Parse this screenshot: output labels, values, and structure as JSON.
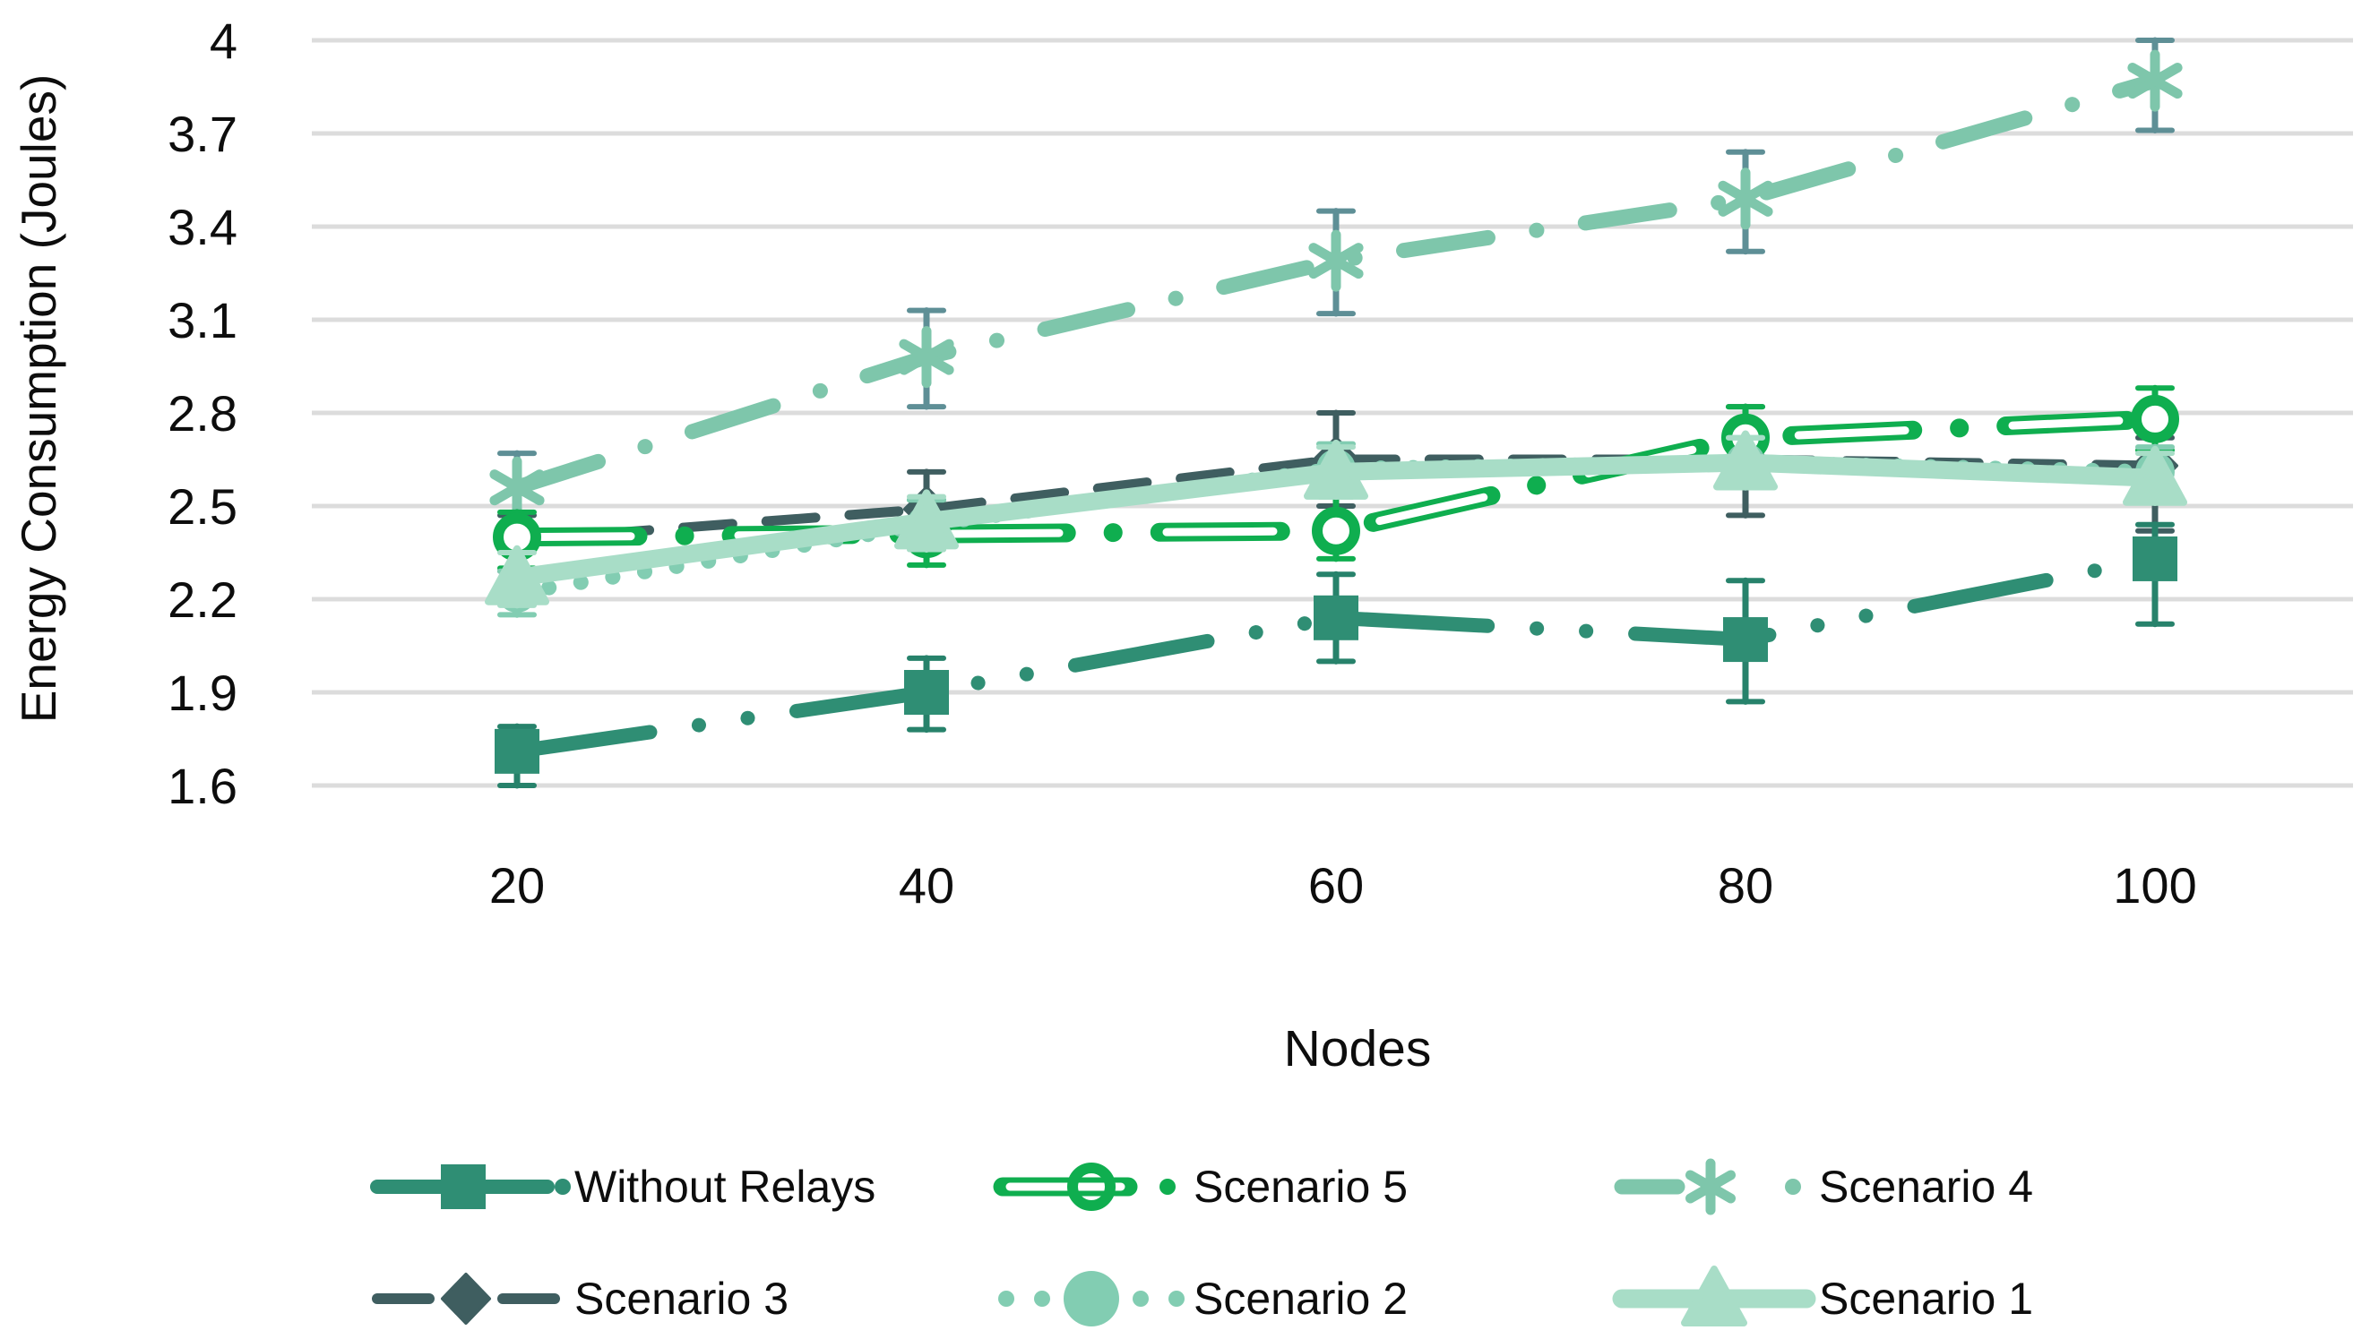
{
  "chart_data": {
    "type": "line",
    "title": "",
    "xlabel": "Nodes",
    "ylabel": "Energy Consumption (Joules)",
    "x_tick_labels": [
      "20",
      "40",
      "60",
      "80",
      "100"
    ],
    "x_values": [
      20,
      40,
      60,
      80,
      100
    ],
    "y_tick_labels": [
      "4",
      "3.7",
      "3.4",
      "3.1",
      "2.8",
      "2.5",
      "2.2",
      "1.9",
      "1.6"
    ],
    "ylim": [
      1.6,
      4.0
    ],
    "y_step": 0.3,
    "grid": "horizontal",
    "gridline_color": "#dcdcdc",
    "legend_position": "bottom",
    "legend_rows": [
      [
        "Without Relays",
        "Scenario 5",
        "Scenario 4"
      ],
      [
        "Scenario 3",
        "Scenario 2",
        "Scenario 1"
      ]
    ],
    "draw_order": [
      "Scenario 4",
      "Scenario 3",
      "Scenario 5",
      "Scenario 2",
      "Without Relays",
      "Scenario 1"
    ],
    "series": [
      {
        "name": "Without Relays",
        "color": "#2F8E74",
        "error_color": "#27826B",
        "line_style": "dash-dot-dot",
        "marker": "square",
        "values": [
          1.71,
          1.9,
          2.14,
          2.07,
          2.33
        ],
        "err_minus": [
          0.11,
          0.12,
          0.14,
          0.2,
          0.21
        ],
        "err_plus": [
          0.08,
          0.11,
          0.14,
          0.19,
          0.11
        ]
      },
      {
        "name": "Scenario 5",
        "color": "#0FAE4F",
        "error_color": "#0FAE4F",
        "line_style": "hollow-dash-dot",
        "marker": "open-circle",
        "values": [
          2.4,
          2.41,
          2.42,
          2.72,
          2.78
        ],
        "err_minus": [
          0.1,
          0.1,
          0.09,
          0.11,
          0.1
        ],
        "err_plus": [
          0.08,
          0.11,
          0.11,
          0.1,
          0.1
        ]
      },
      {
        "name": "Scenario 4",
        "color": "#7EC6AB",
        "error_color": "#5E8F96",
        "line_style": "dash-dot",
        "marker": "asterisk",
        "values": [
          2.56,
          2.98,
          3.29,
          3.49,
          3.87
        ],
        "err_minus": [
          0.13,
          0.16,
          0.17,
          0.17,
          0.16
        ],
        "err_plus": [
          0.11,
          0.15,
          0.16,
          0.15,
          0.13
        ]
      },
      {
        "name": "Scenario 3",
        "color": "#3F5E60",
        "error_color": "#3F5E60",
        "line_style": "dashed",
        "marker": "diamond",
        "values": [
          2.39,
          2.49,
          2.65,
          2.65,
          2.63
        ],
        "err_minus": [
          0.1,
          0.1,
          0.15,
          0.18,
          0.21
        ],
        "err_plus": [
          0.08,
          0.12,
          0.15,
          0.17,
          0.09
        ]
      },
      {
        "name": "Scenario 2",
        "color": "#82CDB2",
        "error_color": "#82CDB2",
        "line_style": "dotted",
        "marker": "circle",
        "values": [
          2.22,
          2.44,
          2.62,
          2.64,
          2.61
        ],
        "err_minus": [
          0.07,
          0.08,
          0.08,
          0.08,
          0.08
        ],
        "err_plus": [
          0.07,
          0.08,
          0.08,
          0.08,
          0.08
        ]
      },
      {
        "name": "Scenario 1",
        "color": "#A8DDC7",
        "error_color": "#A8DDC7",
        "line_style": "solid",
        "marker": "triangle",
        "values": [
          2.27,
          2.45,
          2.61,
          2.64,
          2.59
        ],
        "err_minus": [
          0.09,
          0.09,
          0.08,
          0.08,
          0.08
        ],
        "err_plus": [
          0.08,
          0.08,
          0.08,
          0.08,
          0.08
        ]
      }
    ]
  }
}
